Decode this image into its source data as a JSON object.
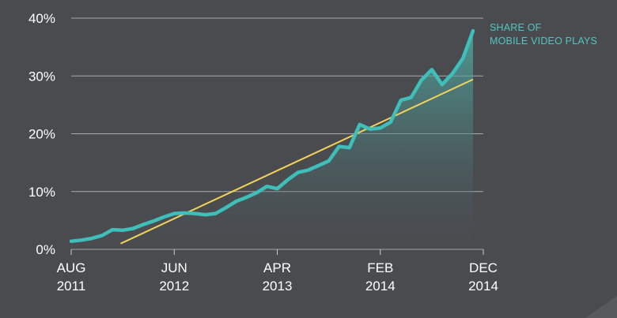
{
  "chart_data": {
    "type": "area",
    "title": "",
    "xlabel": "",
    "ylabel": "",
    "x_range": [
      "2011-08",
      "2014-12"
    ],
    "xlim": [
      0,
      40
    ],
    "ylim": [
      0,
      40
    ],
    "y_ticks": [
      0,
      10,
      20,
      30,
      40
    ],
    "y_tick_labels": [
      "0%",
      "10%",
      "20%",
      "30%",
      "40%"
    ],
    "x_ticks": [
      {
        "index": 0,
        "line1": "AUG",
        "line2": "2011"
      },
      {
        "index": 10,
        "line1": "JUN",
        "line2": "2012"
      },
      {
        "index": 20,
        "line1": "APR",
        "line2": "2013"
      },
      {
        "index": 30,
        "line1": "FEB",
        "line2": "2014"
      },
      {
        "index": 40,
        "line1": "DEC",
        "line2": "2014"
      }
    ],
    "grid": true,
    "series": [
      {
        "name": "SHARE OF MOBILE VIDEO PLAYS",
        "color": "#3fbfba",
        "points": [
          [
            0,
            1.4
          ],
          [
            1,
            1.6
          ],
          [
            2,
            1.9
          ],
          [
            3,
            2.4
          ],
          [
            4,
            3.4
          ],
          [
            5,
            3.3
          ],
          [
            6,
            3.6
          ],
          [
            7,
            4.3
          ],
          [
            8,
            4.9
          ],
          [
            9,
            5.6
          ],
          [
            10,
            6.2
          ],
          [
            11,
            6.3
          ],
          [
            12,
            6.2
          ],
          [
            13,
            6.0
          ],
          [
            14,
            6.2
          ],
          [
            15,
            7.2
          ],
          [
            16,
            8.3
          ],
          [
            17,
            9.0
          ],
          [
            18,
            9.8
          ],
          [
            19,
            10.9
          ],
          [
            20,
            10.5
          ],
          [
            21,
            12.0
          ],
          [
            22,
            13.3
          ],
          [
            23,
            13.7
          ],
          [
            24,
            14.5
          ],
          [
            25,
            15.3
          ],
          [
            26,
            17.8
          ],
          [
            27,
            17.6
          ],
          [
            28,
            21.6
          ],
          [
            29,
            20.8
          ],
          [
            30,
            21.0
          ],
          [
            31,
            22.0
          ],
          [
            32,
            25.8
          ],
          [
            33,
            26.3
          ],
          [
            34,
            29.3
          ],
          [
            35,
            31.1
          ],
          [
            36,
            28.5
          ],
          [
            37,
            30.4
          ],
          [
            38,
            33.0
          ],
          [
            39,
            37.8
          ]
        ]
      }
    ],
    "trend_line": {
      "color": "#f3d35a",
      "start": [
        4.8,
        1.0
      ],
      "end": [
        39.0,
        29.4
      ]
    },
    "annotation": {
      "line1": "SHARE OF",
      "line2": "MOBILE VIDEO PLAYS",
      "color": "#4fc7c0"
    }
  }
}
